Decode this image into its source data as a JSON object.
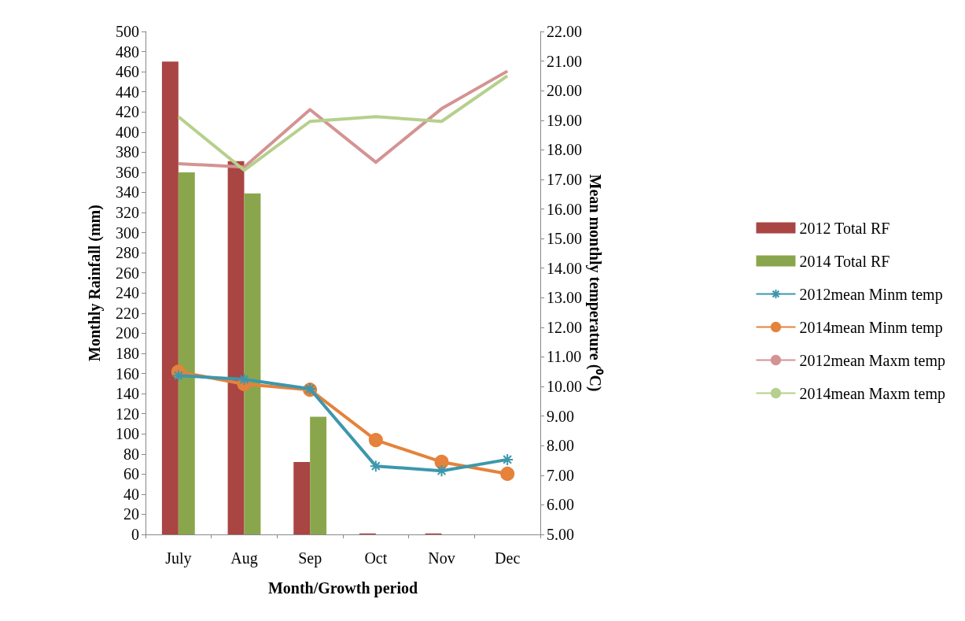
{
  "chart_data": {
    "type": "bar",
    "xlabel": "Month/Growth period",
    "ylabel": "Monthly Rainfall (mm)",
    "y2label": "Mean monthly temperature (⁰C)",
    "categories": [
      "July",
      "Aug",
      "Sep",
      "Oct",
      "Nov",
      "Dec"
    ],
    "series": [
      {
        "name": "2012 Total RF",
        "color": "#a94543",
        "values": [
          470,
          371,
          72,
          1,
          1,
          0
        ]
      },
      {
        "name": "2014 Total RF",
        "color": "#8aa64c",
        "values": [
          360,
          339,
          117,
          0,
          0,
          0
        ]
      },
      {
        "name": "2012mean Minm temp",
        "type": "line",
        "axis": "y2",
        "marker": "cross",
        "color": "#3c97ad",
        "values": [
          10.37,
          10.24,
          9.92,
          7.31,
          7.15,
          7.53
        ]
      },
      {
        "name": "2014mean Minm temp",
        "type": "line",
        "axis": "y2",
        "marker": "circle",
        "color": "#e5823b",
        "values": [
          10.5,
          10.08,
          9.89,
          8.19,
          7.45,
          7.05
        ]
      },
      {
        "name": "2012mean Maxm temp",
        "type": "line",
        "axis": "y2",
        "marker": "none",
        "color": "#d49393",
        "values": [
          17.53,
          17.42,
          19.36,
          17.58,
          19.39,
          20.66
        ]
      },
      {
        "name": "2014mean Maxm temp",
        "type": "line",
        "axis": "y2",
        "marker": "none",
        "color": "#b5d08c",
        "values": [
          19.12,
          17.31,
          18.96,
          19.12,
          18.96,
          20.5
        ]
      }
    ],
    "ylim": [
      0,
      500
    ],
    "yticks": [
      0,
      20,
      40,
      60,
      80,
      100,
      120,
      140,
      160,
      180,
      200,
      220,
      240,
      260,
      280,
      300,
      320,
      340,
      360,
      380,
      400,
      420,
      440,
      460,
      480,
      500
    ],
    "y2lim": [
      5,
      22
    ],
    "y2ticks": [
      {
        "value": 5,
        "label": "5.00"
      },
      {
        "value": 6,
        "label": "6.00"
      },
      {
        "value": 7,
        "label": "7.00"
      },
      {
        "value": 8,
        "label": "8.00"
      },
      {
        "value": 9,
        "label": "9.00"
      },
      {
        "value": 10,
        "label": "10.00"
      },
      {
        "value": 11,
        "label": "11.00"
      },
      {
        "value": 12,
        "label": "12.00"
      },
      {
        "value": 13,
        "label": "13.00"
      },
      {
        "value": 14,
        "label": "14.00"
      },
      {
        "value": 15,
        "label": "15.00"
      },
      {
        "value": 16,
        "label": "16.00"
      },
      {
        "value": 17,
        "label": "17.00"
      },
      {
        "value": 18,
        "label": "18.00"
      },
      {
        "value": 19,
        "label": "19.00"
      },
      {
        "value": 20,
        "label": "20.00"
      },
      {
        "value": 21,
        "label": "21.00"
      },
      {
        "value": 22,
        "label": "22.00"
      }
    ],
    "grid": false,
    "legend": "right",
    "line_style": "solid"
  }
}
